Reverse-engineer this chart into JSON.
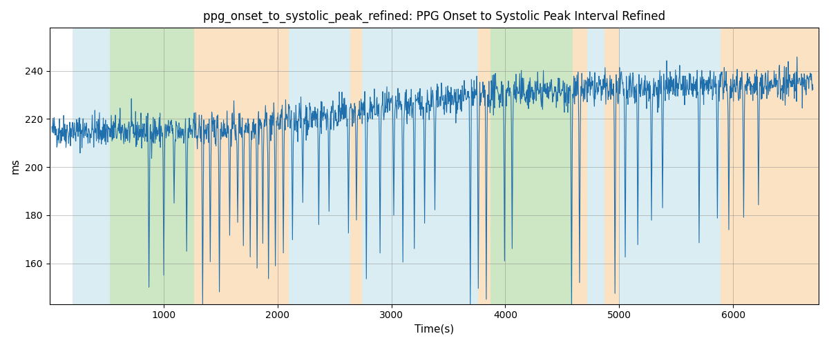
{
  "title": "ppg_onset_to_systolic_peak_refined: PPG Onset to Systolic Peak Interval Refined",
  "xlabel": "Time(s)",
  "ylabel": "ms",
  "xlim": [
    0,
    6750
  ],
  "ylim": [
    143,
    258
  ],
  "grid": true,
  "line_color": "#1f6fad",
  "line_width": 0.8,
  "background_color": "#ffffff",
  "colored_regions": [
    {
      "xmin": 200,
      "xmax": 530,
      "color": "#add8e6",
      "alpha": 0.45
    },
    {
      "xmin": 530,
      "xmax": 1270,
      "color": "#90c97a",
      "alpha": 0.45
    },
    {
      "xmin": 1270,
      "xmax": 2100,
      "color": "#f4c07a",
      "alpha": 0.45
    },
    {
      "xmin": 2100,
      "xmax": 2640,
      "color": "#add8e6",
      "alpha": 0.45
    },
    {
      "xmin": 2640,
      "xmax": 2740,
      "color": "#f4c07a",
      "alpha": 0.45
    },
    {
      "xmin": 2740,
      "xmax": 3760,
      "color": "#add8e6",
      "alpha": 0.45
    },
    {
      "xmin": 3760,
      "xmax": 3870,
      "color": "#f4c07a",
      "alpha": 0.45
    },
    {
      "xmin": 3870,
      "xmax": 4590,
      "color": "#90c97a",
      "alpha": 0.45
    },
    {
      "xmin": 4590,
      "xmax": 4720,
      "color": "#f4c07a",
      "alpha": 0.45
    },
    {
      "xmin": 4720,
      "xmax": 4870,
      "color": "#add8e6",
      "alpha": 0.45
    },
    {
      "xmin": 4870,
      "xmax": 5000,
      "color": "#f4c07a",
      "alpha": 0.45
    },
    {
      "xmin": 5000,
      "xmax": 5890,
      "color": "#add8e6",
      "alpha": 0.45
    },
    {
      "xmin": 5890,
      "xmax": 6750,
      "color": "#f4c07a",
      "alpha": 0.45
    }
  ],
  "seed": 42,
  "n_points": 2000,
  "x_start": 20,
  "x_end": 6700
}
